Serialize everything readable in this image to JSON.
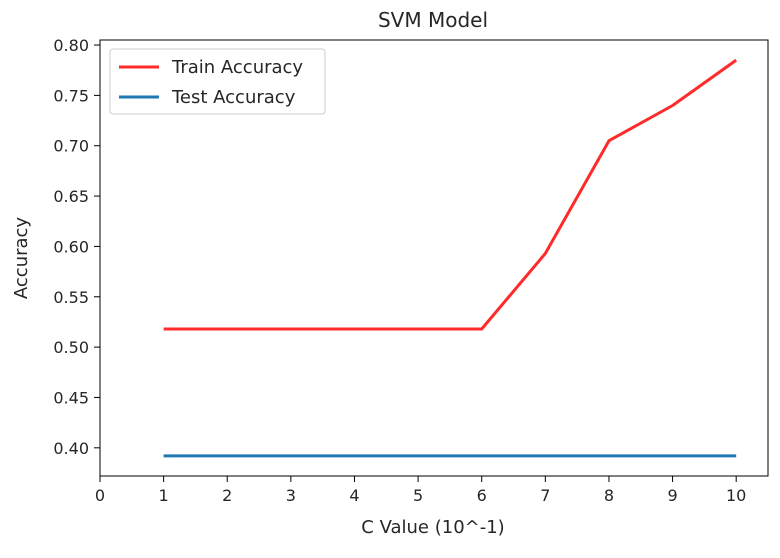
{
  "chart_data": {
    "type": "line",
    "title": "SVM Model",
    "xlabel": "C Value (10^-1)",
    "ylabel": "Accuracy",
    "xlim": [
      -0.0,
      10.5
    ],
    "ylim": [
      0.372,
      0.805
    ],
    "xticks": [
      0,
      1,
      2,
      3,
      4,
      5,
      6,
      7,
      8,
      9,
      10
    ],
    "yticks": [
      0.4,
      0.45,
      0.5,
      0.55,
      0.6,
      0.65,
      0.7,
      0.75,
      0.8
    ],
    "ytick_labels": [
      "0.40",
      "0.45",
      "0.50",
      "0.55",
      "0.60",
      "0.65",
      "0.70",
      "0.75",
      "0.80"
    ],
    "grid": false,
    "legend_position": "top-left",
    "x": [
      1,
      2,
      3,
      4,
      5,
      6,
      7,
      8,
      9,
      10
    ],
    "series": [
      {
        "name": "Train Accuracy",
        "color": "#ff2a2a",
        "values": [
          0.518,
          0.518,
          0.518,
          0.518,
          0.518,
          0.518,
          0.593,
          0.705,
          0.74,
          0.785
        ]
      },
      {
        "name": "Test Accuracy",
        "color": "#1f77b4",
        "values": [
          0.392,
          0.392,
          0.392,
          0.392,
          0.392,
          0.392,
          0.392,
          0.392,
          0.392,
          0.392
        ]
      }
    ]
  }
}
